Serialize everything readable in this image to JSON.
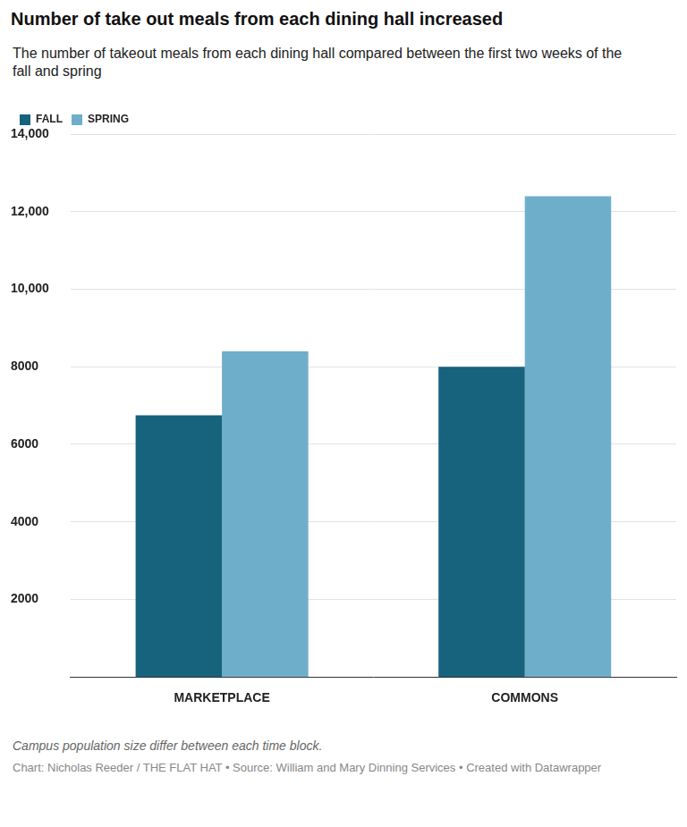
{
  "chart_data": {
    "type": "bar",
    "title": "Number of take out meals from each dining hall increased",
    "subtitle": "The number of takeout meals from each dining hall compared between the first two weeks of the fall and spring",
    "categories": [
      "MARKETPLACE",
      "COMMONS"
    ],
    "series": [
      {
        "name": "FALL",
        "color": "#17627d",
        "values": [
          6750,
          8000
        ]
      },
      {
        "name": "SPRING",
        "color": "#6eaecb",
        "values": [
          8400,
          12400
        ]
      }
    ],
    "ylim": [
      0,
      14000
    ],
    "yticks": [
      2000,
      4000,
      6000,
      8000,
      {
        "value": 10000,
        "label": "10,000"
      },
      {
        "value": 12000,
        "label": "12,000"
      },
      {
        "value": 14000,
        "label": "14,000"
      }
    ],
    "grid": true,
    "legend": "top-left",
    "annotation": "Campus population size differ between each time block.",
    "source": "Chart: Nicholas Reeder / THE FLAT HAT • Source: William and Mary Dinning Services • Created with Datawrapper"
  }
}
